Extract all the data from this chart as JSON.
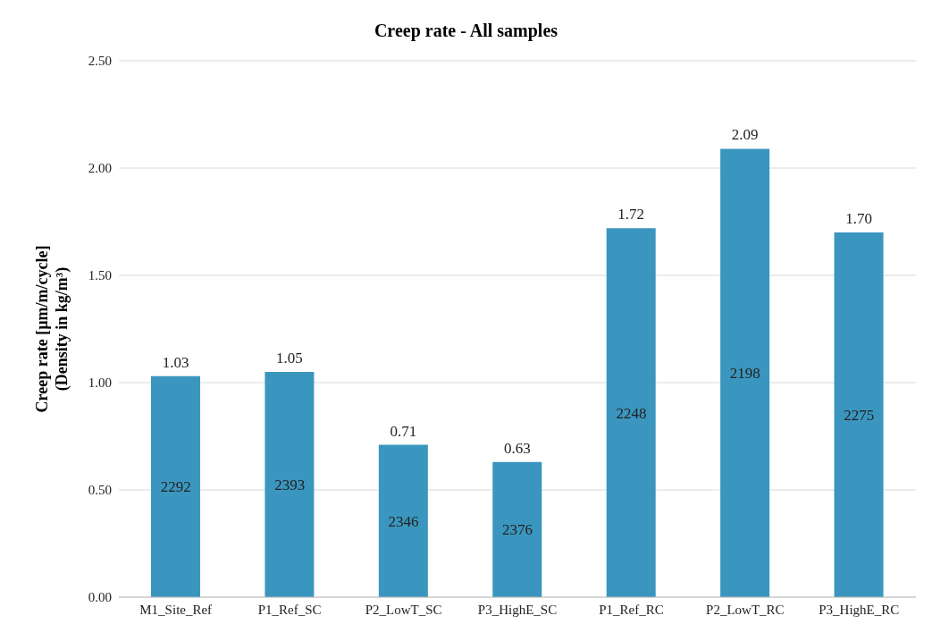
{
  "chart_data": {
    "type": "bar",
    "title": "Creep rate - All samples",
    "ylabel": "Creep rate [µm/m/cycle]\n(Density in kg/m³)",
    "categories": [
      "M1_Site_Ref",
      "P1_Ref_SC",
      "P2_LowT_SC",
      "P3_HighE_SC",
      "P1_Ref_RC",
      "P2_LowT_RC",
      "P3_HighE_RC"
    ],
    "values": [
      1.03,
      1.05,
      0.71,
      0.63,
      1.72,
      2.09,
      1.7
    ],
    "color": "#3a96be",
    "data_labels": true,
    "value_labels": [
      "1.03",
      "1.05",
      "0.71",
      "0.63",
      "1.72",
      "2.09",
      "1.70"
    ],
    "ylim": [
      0,
      2.5
    ],
    "yticks": [
      {
        "value": 0,
        "label": "0.00"
      },
      {
        "value": 0.5,
        "label": "0.50"
      },
      {
        "value": 1,
        "label": "1.00"
      },
      {
        "value": 1.5,
        "label": "1.50"
      },
      {
        "value": 2,
        "label": "2.00"
      },
      {
        "value": 2.5,
        "label": "2.50"
      }
    ],
    "grid": "y",
    "legend": false,
    "annotations": [
      "2292",
      "2393",
      "2346",
      "2376",
      "2248",
      "2198",
      "2275"
    ]
  }
}
